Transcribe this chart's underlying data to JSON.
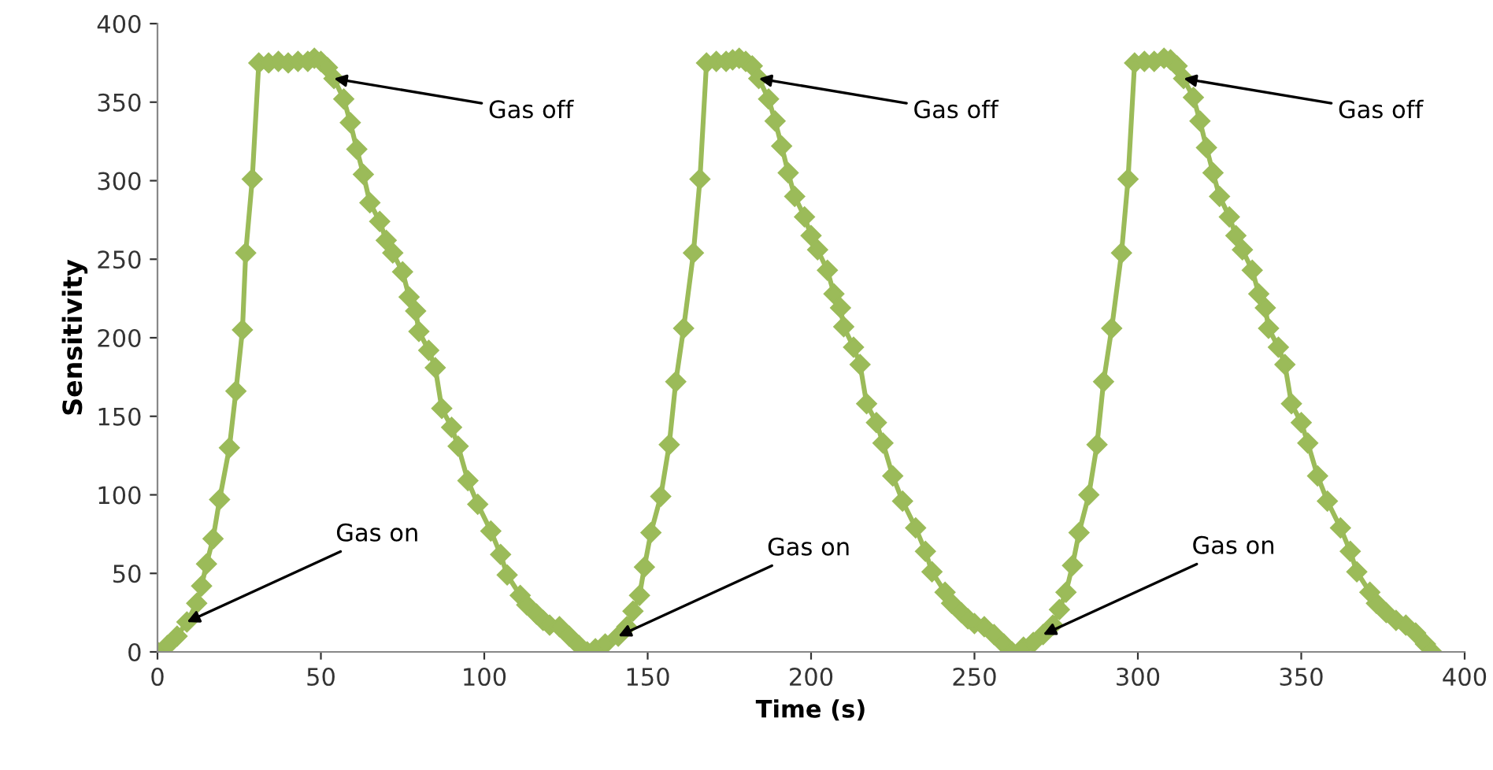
{
  "chart_data": {
    "type": "line",
    "xlabel": "Time (s)",
    "ylabel": "Sensitivity",
    "xlim": [
      0,
      400
    ],
    "xticks": [
      0,
      50,
      100,
      150,
      200,
      250,
      300,
      350,
      400
    ],
    "ylim": [
      0,
      400
    ],
    "yticks": [
      0,
      50,
      100,
      150,
      200,
      250,
      300,
      350,
      400
    ],
    "grid": false,
    "marker": "diamond",
    "line_style": "solid",
    "series": [
      {
        "color": "#9bbb59",
        "x": [
          0,
          3,
          6,
          9,
          12,
          13.5,
          15,
          17,
          19,
          22,
          24,
          26,
          27,
          29,
          31,
          34,
          37,
          40,
          43,
          46,
          48,
          50,
          52,
          54,
          57,
          59,
          61,
          63,
          65,
          68,
          70,
          72,
          75,
          77,
          79,
          80,
          83,
          85,
          87,
          90,
          92,
          95,
          98,
          102,
          105,
          107,
          111,
          113,
          116,
          118,
          120,
          123,
          126,
          129,
          131.5,
          134,
          137,
          141,
          143.6,
          145.5,
          147.5,
          149,
          151,
          154,
          156.6,
          158.6,
          161,
          164,
          166,
          168,
          171,
          174,
          176,
          178,
          180,
          182,
          184,
          187,
          189,
          191,
          193,
          195,
          198,
          200,
          202,
          205,
          207,
          209,
          210,
          213,
          215,
          217,
          220,
          222,
          225,
          228,
          232,
          235,
          237,
          241,
          243,
          246,
          248,
          250,
          253,
          256,
          259,
          261.5,
          265,
          268,
          271,
          274,
          276,
          278,
          280,
          282,
          285,
          287.5,
          289.5,
          292,
          295,
          297,
          299,
          302,
          305,
          308,
          310,
          312,
          314,
          317,
          319,
          321,
          323,
          325,
          328,
          330,
          332,
          335,
          337,
          339,
          340,
          343,
          345,
          347,
          350,
          352,
          355,
          358,
          362,
          365,
          367,
          371,
          373,
          376,
          379,
          382,
          385,
          388,
          390
        ],
        "values": [
          0,
          4,
          10,
          19,
          31,
          42,
          56,
          72,
          97,
          130,
          166,
          205,
          254,
          301,
          375,
          375,
          376,
          375,
          376,
          376,
          378,
          376,
          372,
          365,
          352,
          337,
          320,
          304,
          286,
          274,
          262,
          254,
          242,
          226,
          217,
          204,
          192,
          181,
          155,
          143,
          131,
          109,
          94,
          77,
          62,
          49,
          36,
          30,
          24,
          20,
          17,
          16,
          10,
          4,
          0,
          2,
          5,
          10,
          16,
          26,
          36,
          54,
          76,
          99,
          132,
          172,
          206,
          254,
          301,
          375,
          376,
          376,
          377,
          378,
          376,
          373,
          365,
          352,
          338,
          322,
          305,
          290,
          277,
          265,
          256,
          243,
          228,
          219,
          207,
          194,
          183,
          158,
          146,
          133,
          112,
          96,
          79,
          64,
          51,
          38,
          31,
          25,
          21,
          18,
          16,
          11,
          5,
          0,
          3,
          6,
          11,
          17,
          27,
          38,
          55,
          76,
          100,
          132,
          172,
          206,
          254,
          301,
          375,
          376,
          376,
          378,
          377,
          373,
          365,
          353,
          338,
          321,
          305,
          290,
          277,
          265,
          256,
          243,
          228,
          219,
          206,
          194,
          183,
          158,
          146,
          133,
          112,
          96,
          79,
          64,
          51,
          38,
          31,
          25,
          20,
          17,
          12,
          5,
          0
        ]
      }
    ],
    "annotations": [
      {
        "text": "Gas on",
        "x": 9,
        "y": 19
      },
      {
        "text": "Gas off",
        "x": 54,
        "y": 365
      },
      {
        "text": "Gas on",
        "x": 141,
        "y": 10
      },
      {
        "text": "Gas off",
        "x": 184,
        "y": 365
      },
      {
        "text": "Gas on",
        "x": 271,
        "y": 11
      },
      {
        "text": "Gas off",
        "x": 314,
        "y": 365
      }
    ]
  }
}
